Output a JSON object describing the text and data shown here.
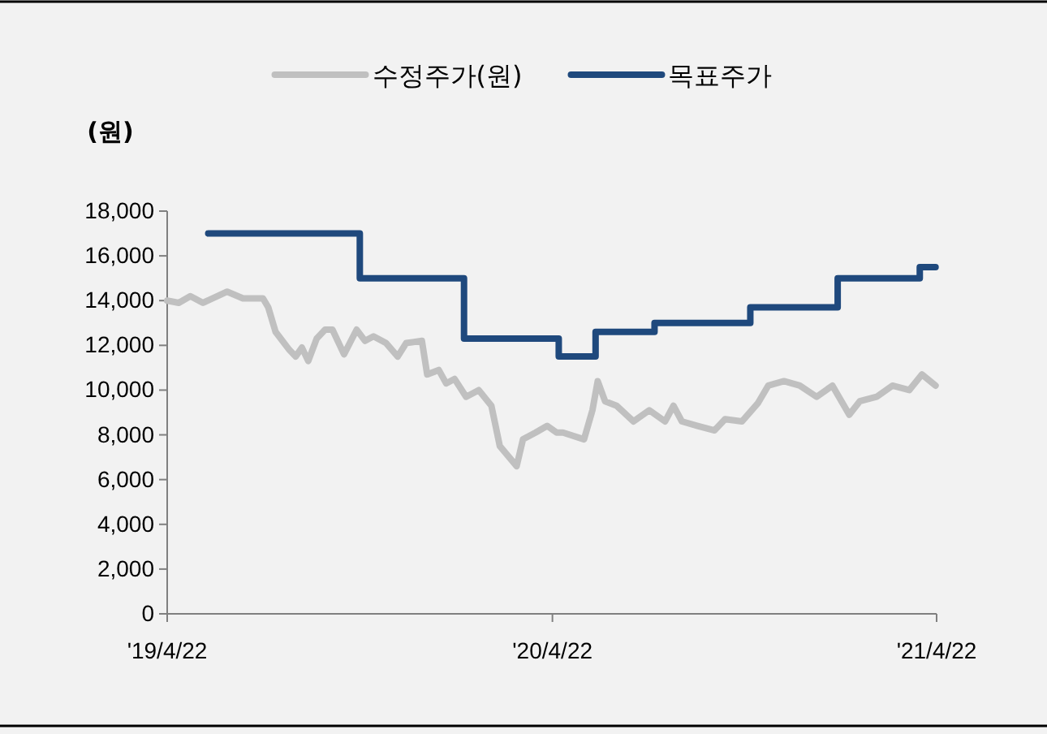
{
  "chart_data": {
    "type": "line",
    "ylabel": "(원)",
    "legend": "top",
    "grid": false,
    "marker": "none",
    "line_style": "solid",
    "xlim": [
      "2019-04-22",
      "2021-04-22"
    ],
    "xticks": [
      {
        "value": "2019-04-22",
        "label": "'19/4/22"
      },
      {
        "value": "2020-04-22",
        "label": "'20/4/22"
      },
      {
        "value": "2021-04-22",
        "label": "'21/4/22"
      }
    ],
    "ylim": [
      0,
      18000
    ],
    "yticks": [
      {
        "value": 0,
        "label": "0"
      },
      {
        "value": 2000,
        "label": "2,000"
      },
      {
        "value": 4000,
        "label": "4,000"
      },
      {
        "value": 6000,
        "label": "6,000"
      },
      {
        "value": 8000,
        "label": "8,000"
      },
      {
        "value": 10000,
        "label": "10,000"
      },
      {
        "value": 12000,
        "label": "12,000"
      },
      {
        "value": 14000,
        "label": "14,000"
      },
      {
        "value": 16000,
        "label": "16,000"
      },
      {
        "value": 18000,
        "label": "18,000"
      }
    ],
    "series": [
      {
        "name": "수정주가(원)",
        "color": "#c0c0c0",
        "x": [
          "2019-04-22",
          "2019-05-03",
          "2019-05-14",
          "2019-05-26",
          "2019-06-18",
          "2019-07-03",
          "2019-07-22",
          "2019-07-27",
          "2019-08-03",
          "2019-08-16",
          "2019-08-22",
          "2019-08-28",
          "2019-09-03",
          "2019-09-11",
          "2019-09-19",
          "2019-09-26",
          "2019-10-07",
          "2019-10-19",
          "2019-10-27",
          "2019-11-04",
          "2019-11-16",
          "2019-11-27",
          "2019-12-05",
          "2019-12-20",
          "2019-12-25",
          "2020-01-05",
          "2020-01-12",
          "2020-01-20",
          "2020-01-31",
          "2020-02-12",
          "2020-02-24",
          "2020-03-03",
          "2020-03-19",
          "2020-03-25",
          "2020-04-06",
          "2020-04-17",
          "2020-04-26",
          "2020-05-02",
          "2020-05-22",
          "2020-05-30",
          "2020-06-04",
          "2020-06-11",
          "2020-06-22",
          "2020-07-08",
          "2020-07-23",
          "2020-08-07",
          "2020-08-15",
          "2020-08-23",
          "2020-09-07",
          "2020-09-23",
          "2020-10-03",
          "2020-10-19",
          "2020-11-03",
          "2020-11-13",
          "2020-11-28",
          "2020-12-13",
          "2020-12-29",
          "2021-01-13",
          "2021-01-29",
          "2021-02-08",
          "2021-02-24",
          "2021-03-11",
          "2021-03-27",
          "2021-04-08",
          "2021-04-21"
        ],
        "values": [
          14000,
          13900,
          14200,
          13900,
          14400,
          14100,
          14100,
          13700,
          12600,
          11800,
          11500,
          11900,
          11300,
          12300,
          12700,
          12700,
          11600,
          12700,
          12200,
          12400,
          12100,
          11500,
          12100,
          12200,
          10700,
          10900,
          10300,
          10500,
          9700,
          10000,
          9300,
          7500,
          6600,
          7800,
          8100,
          8400,
          8100,
          8100,
          7800,
          9100,
          10400,
          9500,
          9300,
          8600,
          9100,
          8600,
          9300,
          8600,
          8400,
          8200,
          8700,
          8600,
          9400,
          10200,
          10400,
          10200,
          9700,
          10200,
          8900,
          9500,
          9700,
          10200,
          10000,
          10700,
          10200
        ]
      },
      {
        "name": "목표주가",
        "type": "step",
        "color": "#1f497d",
        "x": [
          "2019-05-31",
          "2019-10-22",
          "2020-01-29",
          "2020-04-28",
          "2020-06-02",
          "2020-07-28",
          "2020-10-27",
          "2021-01-18",
          "2021-04-06",
          "2021-04-21"
        ],
        "values": [
          17000,
          15000,
          12300,
          11500,
          12600,
          13000,
          13700,
          15000,
          15500,
          15500
        ]
      }
    ]
  }
}
